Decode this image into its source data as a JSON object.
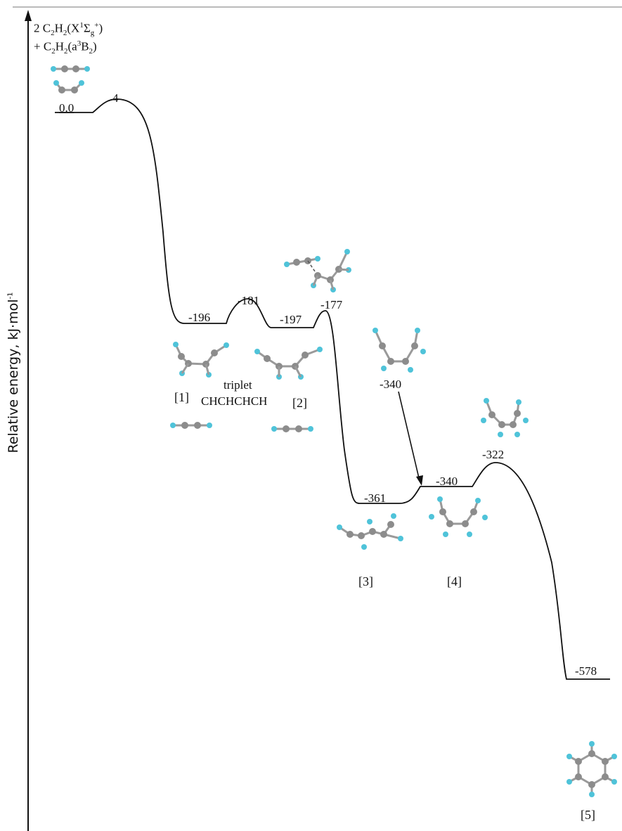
{
  "y_axis": {
    "label": "Relative energy, kJ·mol",
    "unit_superscript": "-1"
  },
  "reactants": {
    "line1": {
      "prefix": "2 C",
      "s1": "2",
      "mid": "H",
      "s2": "2",
      "paren_open": "(X",
      "sup1": "1",
      "sigma": "Σ",
      "sub_g": "g",
      "sup_plus": "+",
      "paren_close": ")"
    },
    "line2": {
      "prefix": "+ C",
      "s1": "2",
      "mid": "H",
      "s2": "2",
      "paren_open": "(a",
      "sup3": "3",
      "b": "B",
      "sub2": "2",
      "paren_close": ")"
    }
  },
  "energy_labels": {
    "reactant": "0.0",
    "ts0": "4",
    "int1": "-196",
    "ts1": "-181",
    "int2": "-197",
    "ts2": "-177",
    "int3": "-361",
    "int4": "-340",
    "int4_alt": "-340",
    "ts3": "-322",
    "product": "-578"
  },
  "species_labels": {
    "s1": "[1]",
    "triplet": "triplet",
    "chchchch": "CHCHCHCH",
    "s2": "[2]",
    "s3": "[3]",
    "s4": "[4]",
    "s5": "[5]"
  },
  "colors": {
    "carbon": "#8c8c8c",
    "hydrogen": "#4fc3d9",
    "bond": "#9a9a9a",
    "line": "#111111"
  }
}
